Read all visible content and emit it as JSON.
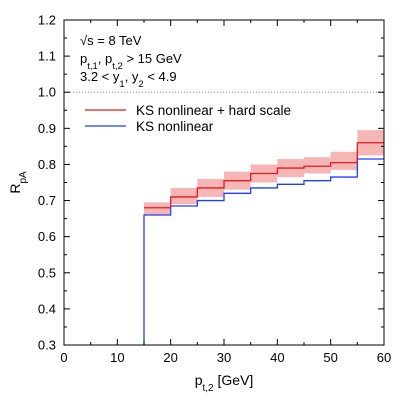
{
  "chart_data": {
    "type": "line",
    "step": true,
    "title": "",
    "xlabel_main": "p",
    "xlabel_sub": "t,2",
    "xlabel_unit": " [GeV]",
    "ylabel_main": "R",
    "ylabel_sub": "pA",
    "xlim": [
      0,
      60
    ],
    "ylim": [
      0.3,
      1.2
    ],
    "xticks": [
      "0",
      "10",
      "20",
      "30",
      "40",
      "50",
      "60"
    ],
    "yticks": [
      "0.3",
      "0.4",
      "0.5",
      "0.6",
      "0.7",
      "0.8",
      "0.9",
      "1.0",
      "1.1",
      "1.2"
    ],
    "reference_line": {
      "y": 1.0,
      "style": "dotted",
      "color": "#888888"
    },
    "annotations": {
      "line1": "√s = 8 TeV",
      "line2_a": "p",
      "line2_a_sub": "t,1",
      "line2_b": ", p",
      "line2_b_sub": "t,2",
      "line2_c": " > 15 GeV",
      "line3_a": "3.2 < y",
      "line3_a_sub": "1",
      "line3_b": ", y",
      "line3_b_sub": "2",
      "line3_c": " < 4.9"
    },
    "bin_edges": [
      15,
      20,
      25,
      30,
      35,
      40,
      45,
      50,
      55,
      60
    ],
    "series": [
      {
        "name": "KS nonlinear + hard scale",
        "color": "#e41a1c",
        "band_color": "#f7b6b6",
        "values": [
          0.68,
          0.71,
          0.735,
          0.755,
          0.775,
          0.79,
          0.795,
          0.805,
          0.86
        ],
        "band_low": [
          0.66,
          0.69,
          0.71,
          0.73,
          0.75,
          0.765,
          0.775,
          0.785,
          0.825
        ],
        "band_high": [
          0.695,
          0.735,
          0.76,
          0.78,
          0.8,
          0.815,
          0.82,
          0.835,
          0.895
        ]
      },
      {
        "name": "KS nonlinear",
        "color": "#1f3fff",
        "values": [
          0.66,
          0.685,
          0.7,
          0.72,
          0.735,
          0.745,
          0.755,
          0.765,
          0.815
        ],
        "drop_to": 0.3
      }
    ],
    "legend_position": "top-left"
  }
}
